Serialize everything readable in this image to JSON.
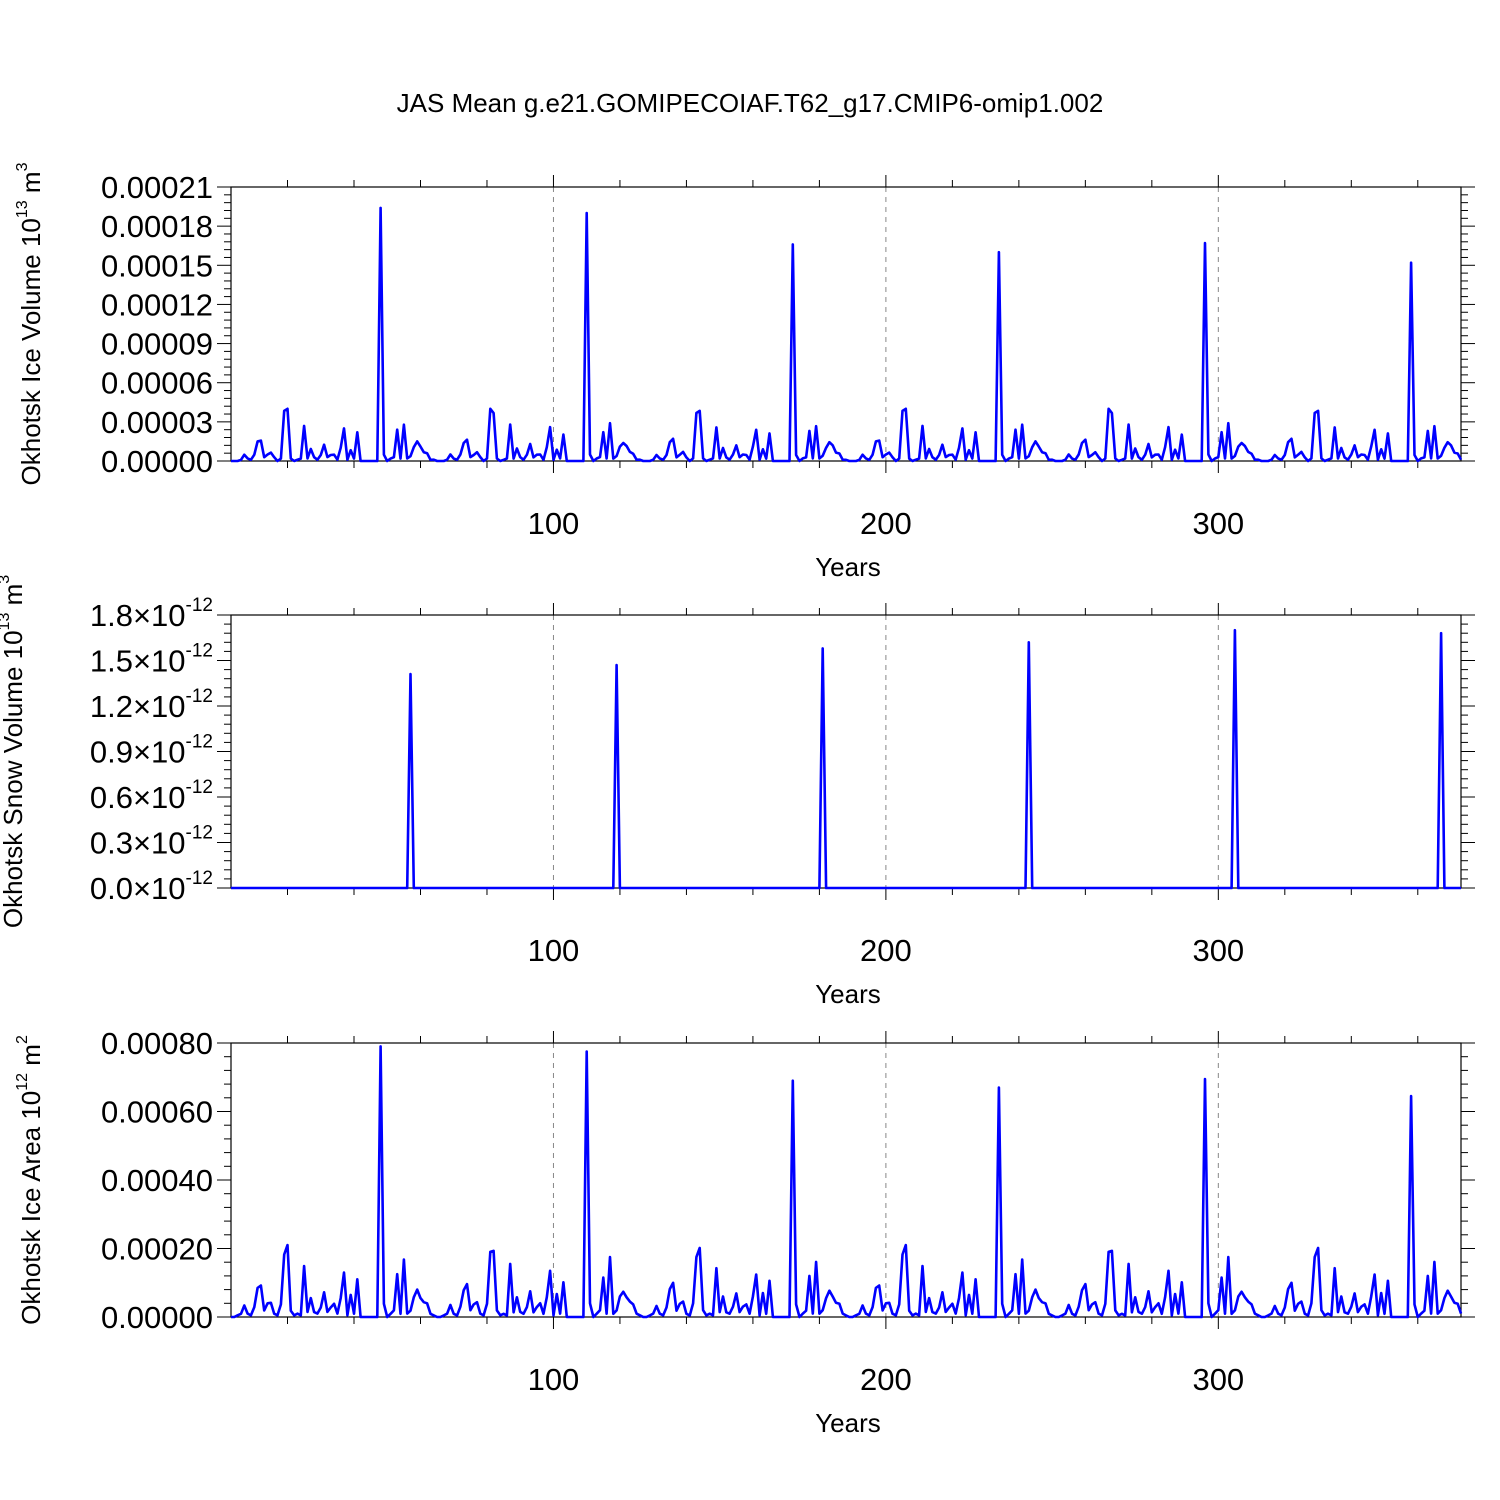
{
  "figure": {
    "title": "JAS Mean g.e21.GOMIPECOIAF.T62_g17.CMIP6-omip1.002"
  },
  "chart_data": [
    {
      "type": "line",
      "title": "JAS Mean g.e21.GOMIPECOIAF.T62_g17.CMIP6-omip1.002",
      "xlabel": "Years",
      "ylabel": {
        "text": "Okhotsk Ice Volume 10",
        "exp": "13",
        "unit": " m",
        "unit_exp": "3"
      },
      "xlim": [
        3,
        373
      ],
      "ylim": [
        0,
        0.00021
      ],
      "x_ticks": [
        100,
        200,
        300
      ],
      "x_tick_labels": [
        "100",
        "200",
        "300"
      ],
      "y_ticks": [
        0,
        3e-05,
        6e-05,
        9e-05,
        0.00012,
        0.00015,
        0.00018,
        0.00021
      ],
      "y_tick_labels": [
        "0.00000",
        "0.00003",
        "0.00006",
        "0.00009",
        "0.00012",
        "0.00015",
        "0.00018",
        "0.00021"
      ],
      "y_tick_exp": "",
      "gridlines": "vertical dashed at major x ticks",
      "color": "#0000ff",
      "x_start": 3,
      "cycle_length": 62,
      "cycles": 6,
      "cycle_values": [
        0,
        0,
        0,
        1e-06,
        5e-06,
        2e-06,
        1e-06,
        5e-06,
        1.5e-05,
        1.7e-05,
        3e-06,
        5e-06,
        7e-06,
        3e-06,
        0,
        2e-06,
        4e-05,
        4e-05,
        2e-06,
        0,
        1e-06,
        2e-06,
        2.8e-05,
        2e-06,
        1e-05,
        3e-06,
        1e-06,
        5e-06,
        1.3e-05,
        3e-06,
        5e-06,
        5e-06,
        1e-06,
        1.1e-05,
        2.6e-05,
        1e-06,
        9e-06,
        2e-06,
        2.2e-05,
        0,
        0,
        0,
        0,
        0,
        0,
        0.000194,
        5e-06,
        0,
        2e-06,
        3e-06,
        2.4e-05,
        2e-06,
        2.9e-05,
        2e-06,
        4e-06,
        1.1e-05,
        1.5e-05,
        1.2e-05,
        7e-06,
        6e-06,
        1e-06,
        1e-06
      ],
      "cycle_peaks": [
        0.000194,
        0.00019,
        0.000166,
        0.00016,
        0.000167,
        0.000152
      ]
    },
    {
      "type": "line",
      "xlabel": "Years",
      "ylabel": {
        "text": "Okhotsk Snow Volume 10",
        "exp": "13",
        "unit": " m",
        "unit_exp": "3"
      },
      "xlim": [
        3,
        373
      ],
      "ylim": [
        0,
        1.8e-12
      ],
      "x_ticks": [
        100,
        200,
        300
      ],
      "x_tick_labels": [
        "100",
        "200",
        "300"
      ],
      "y_ticks": [
        0,
        3e-13,
        6e-13,
        9e-13,
        1.2e-12,
        1.5e-12,
        1.8e-12
      ],
      "y_tick_labels": [
        "0.0",
        "0.3",
        "0.6",
        "0.9",
        "1.2",
        "1.5",
        "1.8"
      ],
      "y_tick_suffix": "×10",
      "y_tick_exp": "-12",
      "gridlines": "vertical dashed at major x ticks",
      "color": "#0000ff",
      "x_start": 3,
      "cycle_length": 62,
      "cycles": 6,
      "cycle_values": [
        0,
        0,
        0,
        0,
        0,
        0,
        0,
        0,
        0,
        0,
        0,
        0,
        0,
        0,
        0,
        0,
        0,
        0,
        0,
        0,
        0,
        0,
        0,
        0,
        0,
        0,
        0,
        0,
        0,
        0,
        0,
        0,
        0,
        0,
        0,
        0,
        0,
        0,
        0,
        0,
        0,
        0,
        0,
        0,
        0,
        0,
        0,
        0,
        0,
        0,
        0,
        0,
        0,
        0,
        1.4e-12,
        0,
        0,
        0,
        0,
        0,
        0,
        0
      ],
      "cycle_peaks": [
        1.41e-12,
        1.47e-12,
        1.58e-12,
        1.62e-12,
        1.7e-12,
        1.68e-12
      ]
    },
    {
      "type": "line",
      "xlabel": "Years",
      "ylabel": {
        "text": "Okhotsk Ice Area 10",
        "exp": "12",
        "unit": " m",
        "unit_exp": "2"
      },
      "xlim": [
        3,
        373
      ],
      "ylim": [
        0,
        0.0008
      ],
      "x_ticks": [
        100,
        200,
        300
      ],
      "x_tick_labels": [
        "100",
        "200",
        "300"
      ],
      "y_ticks": [
        0,
        0.0002,
        0.0004,
        0.0006,
        0.0008
      ],
      "y_tick_labels": [
        "0.00000",
        "0.00020",
        "0.00040",
        "0.00060",
        "0.00080"
      ],
      "y_tick_exp": "",
      "gridlines": "vertical dashed at major x ticks",
      "color": "#0000ff",
      "x_start": 3,
      "cycle_length": 62,
      "cycles": 6,
      "cycle_values": [
        0,
        0,
        5e-06,
        1e-05,
        3.5e-05,
        1e-05,
        5e-06,
        3e-05,
        8.5e-05,
        0.0001,
        2e-05,
        4e-05,
        4.5e-05,
        1e-05,
        5e-06,
        4e-05,
        0.00019,
        0.00021,
        2e-05,
        5e-06,
        1e-05,
        5e-06,
        0.000155,
        1.5e-05,
        6e-05,
        1.5e-05,
        1e-05,
        3e-05,
        7.5e-05,
        1.5e-05,
        3e-05,
        4e-05,
        1e-05,
        6e-05,
        0.000135,
        5e-06,
        7e-05,
        1e-05,
        0.00011,
        0,
        0,
        0,
        0,
        0,
        0,
        0.00079,
        4e-05,
        0,
        1e-05,
        2e-05,
        0.000125,
        1e-05,
        0.000175,
        1e-05,
        2e-05,
        6e-05,
        8e-05,
        6e-05,
        4.5e-05,
        4e-05,
        1e-05,
        5e-06
      ],
      "cycle_peaks": [
        0.00079,
        0.000775,
        0.00069,
        0.00067,
        0.000695,
        0.000645
      ]
    }
  ]
}
